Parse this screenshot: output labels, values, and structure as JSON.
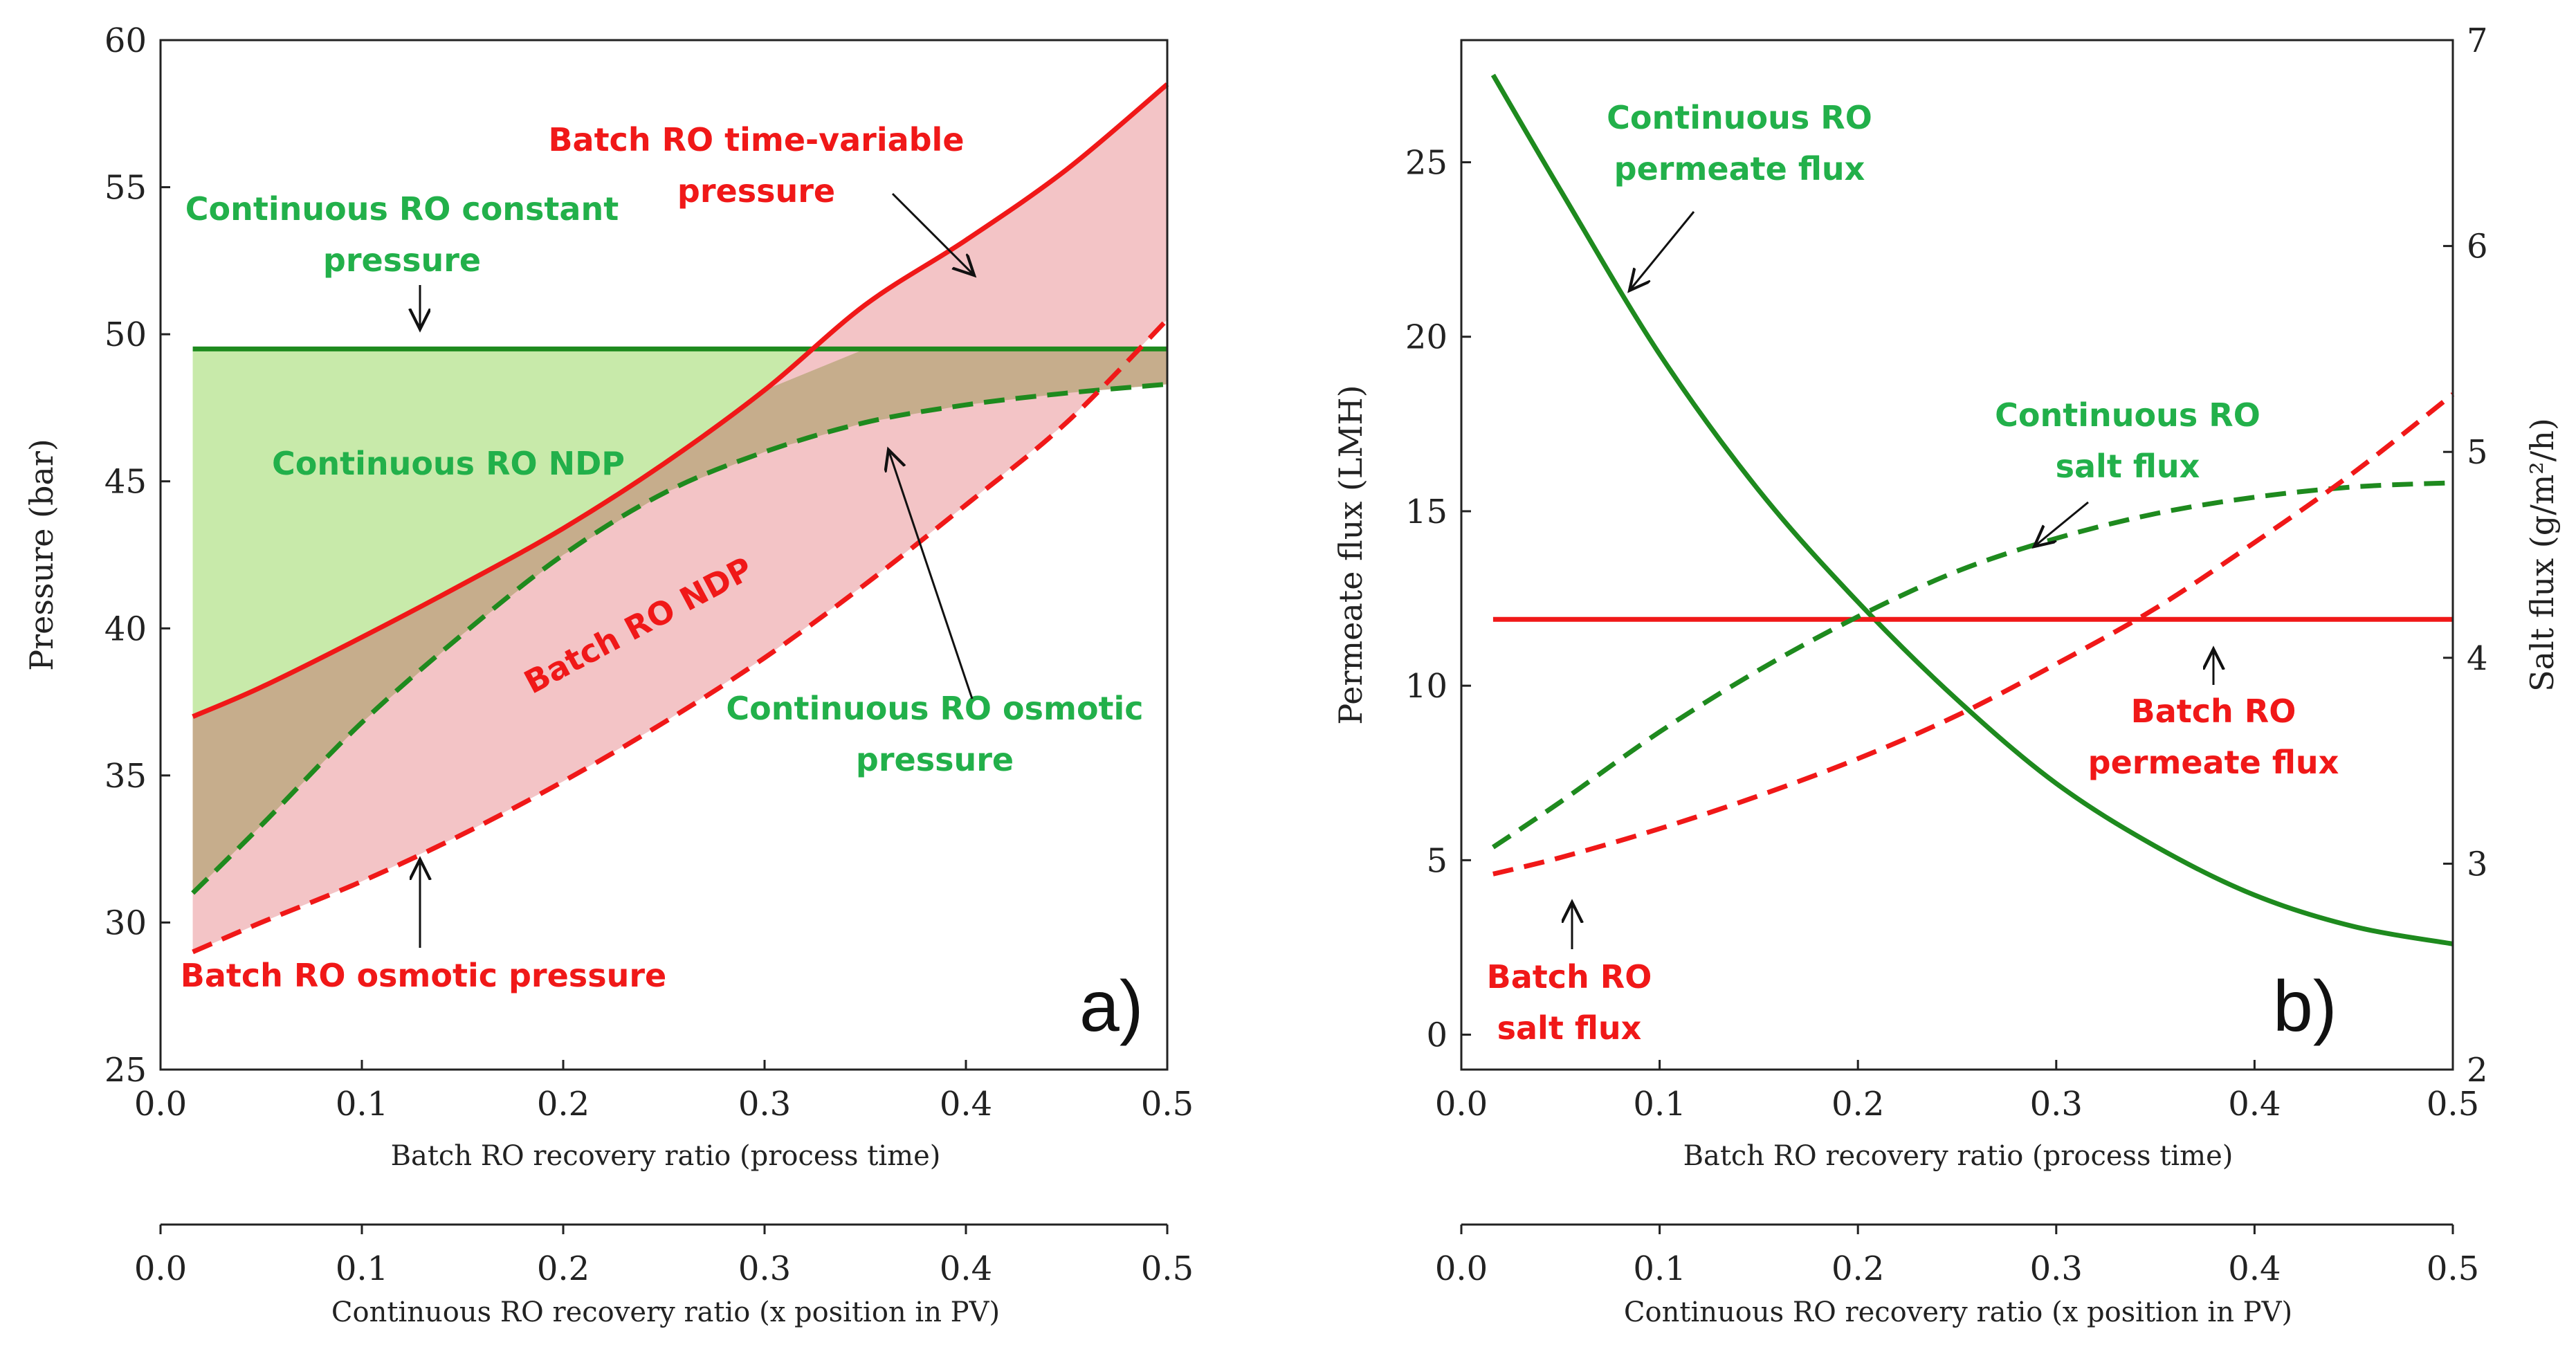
{
  "colors": {
    "red": "#f01818",
    "green": "#1e8a1e",
    "annot_green": "#22b04a",
    "green_fill": "#c8eaaa",
    "red_fill": "#f3c4c6",
    "brown_fill": "#c6ad8c",
    "orange_red": "#e0502a"
  },
  "chart_data": [
    {
      "type": "area",
      "panel": "a)",
      "xlabel": "Batch RO recovery ratio (process time)",
      "xlabel2": "Continuous RO recovery ratio (x position in PV)",
      "ylabel": "Pressure (bar)",
      "xlim": [
        0.0,
        0.5
      ],
      "ylim": [
        25,
        60
      ],
      "xticks": [
        "0.0",
        "0.1",
        "0.2",
        "0.3",
        "0.4",
        "0.5"
      ],
      "yticks": [
        "25",
        "30",
        "35",
        "40",
        "45",
        "50",
        "55",
        "60"
      ],
      "grid": false,
      "x": [
        0.016,
        0.05,
        0.1,
        0.15,
        0.2,
        0.25,
        0.3,
        0.35,
        0.4,
        0.45,
        0.5
      ],
      "series": [
        {
          "name": "Batch RO time-variable pressure",
          "color": "#f01818",
          "dash": "solid",
          "values": [
            37.0,
            38.0,
            39.7,
            41.5,
            43.4,
            45.6,
            48.1,
            51.0,
            53.2,
            55.6,
            58.5
          ]
        },
        {
          "name": "Continuous RO constant pressure",
          "color": "#1e8a1e",
          "dash": "solid",
          "values": [
            49.5,
            49.5,
            49.5,
            49.5,
            49.5,
            49.5,
            49.5,
            49.5,
            49.5,
            49.5,
            49.5
          ]
        },
        {
          "name": "Continuous RO osmotic pressure",
          "color": "#1e8a1e",
          "dash": "dashed",
          "values": [
            31.0,
            33.3,
            36.8,
            39.8,
            42.5,
            44.6,
            46.0,
            47.0,
            47.6,
            48.0,
            48.3
          ]
        },
        {
          "name": "Batch RO osmotic pressure",
          "color": "#f01818",
          "dash": "dashed",
          "values": [
            29.0,
            30.0,
            31.4,
            33.0,
            34.8,
            36.8,
            39.0,
            41.5,
            44.2,
            47.0,
            50.5
          ]
        }
      ],
      "annotations": {
        "batch_tv_line1": "Batch RO time-variable",
        "batch_tv_line2": "pressure",
        "cont_const_line1": "Continuous RO constant",
        "cont_const_line2": "pressure",
        "cont_ndp": "Continuous RO NDP",
        "batch_ndp": "Batch RO NDP",
        "cont_osm_line1": "Continuous RO osmotic",
        "cont_osm_line2": "pressure",
        "batch_osm": "Batch RO osmotic pressure"
      }
    },
    {
      "type": "line",
      "panel": "b)",
      "xlabel": "Batch RO recovery ratio (process time)",
      "xlabel2": "Continuous RO recovery ratio (x position in PV)",
      "ylabel": "Permeate flux (LMH)",
      "ylabel_right": "Salt flux (g/m²/h)",
      "xlim": [
        0.0,
        0.5
      ],
      "ylim": [
        -1,
        28.5
      ],
      "ylim_right": [
        2,
        7
      ],
      "xticks": [
        "0.0",
        "0.1",
        "0.2",
        "0.3",
        "0.4",
        "0.5"
      ],
      "yticks": [
        "0",
        "5",
        "10",
        "15",
        "20",
        "25"
      ],
      "yticks_right": [
        "2",
        "3",
        "4",
        "5",
        "6",
        "7"
      ],
      "grid": false,
      "x": [
        0.016,
        0.05,
        0.1,
        0.15,
        0.2,
        0.25,
        0.3,
        0.35,
        0.4,
        0.45,
        0.5
      ],
      "series": [
        {
          "name": "Continuous RO permeate flux",
          "axis": "left",
          "color": "#1e8a1e",
          "dash": "solid",
          "values": [
            27.5,
            24.2,
            19.5,
            15.6,
            12.4,
            9.6,
            7.2,
            5.4,
            4.0,
            3.1,
            2.6
          ]
        },
        {
          "name": "Batch RO permeate flux",
          "axis": "left",
          "color": "#f01818",
          "dash": "solid",
          "values": [
            11.9,
            11.9,
            11.9,
            11.9,
            11.9,
            11.9,
            11.9,
            11.9,
            11.9,
            11.9,
            11.9
          ]
        },
        {
          "name": "Continuous RO salt flux",
          "axis": "right",
          "color": "#1e8a1e",
          "dash": "dashed",
          "values": [
            3.08,
            3.3,
            3.64,
            3.94,
            4.2,
            4.42,
            4.58,
            4.7,
            4.78,
            4.83,
            4.85
          ]
        },
        {
          "name": "Batch RO salt flux",
          "axis": "right",
          "color": "#f01818",
          "dash": "dashed",
          "values": [
            2.95,
            3.03,
            3.17,
            3.33,
            3.51,
            3.72,
            3.97,
            4.24,
            4.56,
            4.9,
            5.28
          ]
        }
      ],
      "annotations": {
        "cont_perm_line1": "Continuous RO",
        "cont_perm_line2": "permeate flux",
        "cont_salt_line1": "Continuous RO",
        "cont_salt_line2": "salt flux",
        "batch_perm_line1": "Batch RO",
        "batch_perm_line2": "permeate flux",
        "batch_salt_line1": "Batch RO",
        "batch_salt_line2": "salt flux"
      }
    }
  ]
}
